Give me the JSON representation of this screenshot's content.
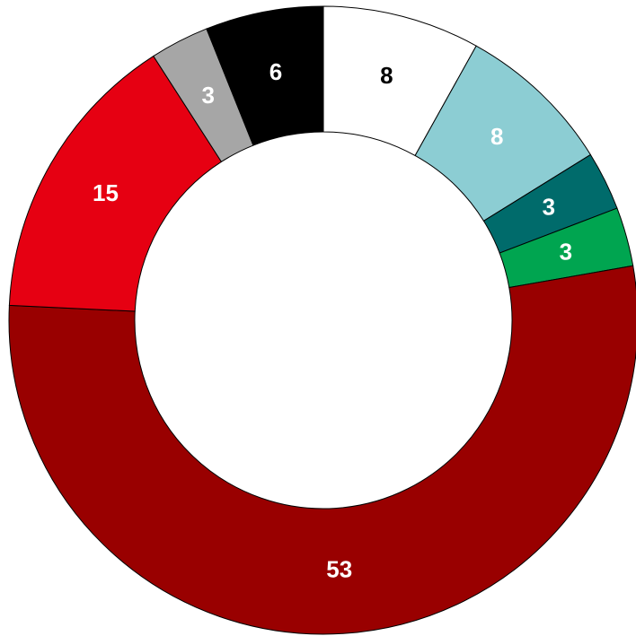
{
  "chart_data": {
    "type": "donut",
    "values": [
      8,
      8,
      3,
      3,
      53,
      15,
      3,
      6
    ],
    "colors": [
      "#ffffff",
      "#8ccdd3",
      "#006b6b",
      "#00a550",
      "#990000",
      "#e60012",
      "#a6a6a6",
      "#000000"
    ]
  }
}
